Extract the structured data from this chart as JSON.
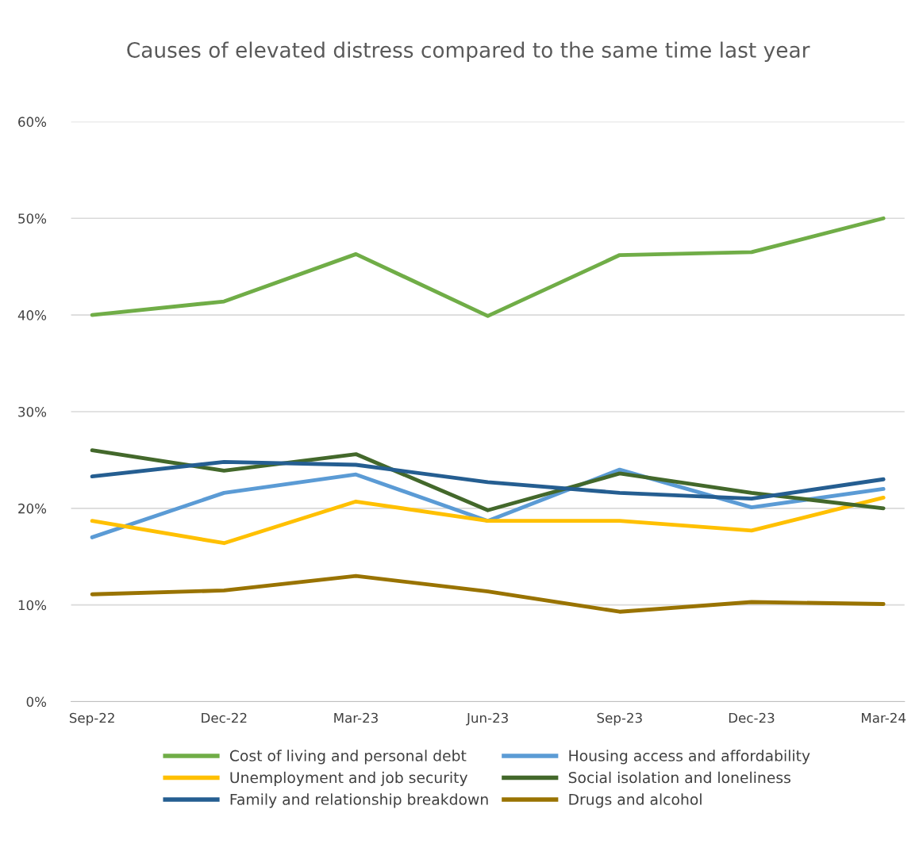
{
  "chart_data": {
    "type": "line",
    "title": "Causes of elevated distress compared to the same time last year",
    "categories": [
      "Sep-22",
      "Dec-22",
      "Mar-23",
      "Jun-23",
      "Sep-23",
      "Dec-23",
      "Mar-24"
    ],
    "series": [
      {
        "name": "Cost of living and personal debt",
        "color": "#70ad47",
        "values": [
          40.0,
          41.4,
          46.3,
          39.9,
          46.2,
          46.5,
          50.0
        ]
      },
      {
        "name": "Housing access and affordability",
        "color": "#5b9bd5",
        "values": [
          17.0,
          21.6,
          23.5,
          18.7,
          24.0,
          20.1,
          22.0
        ]
      },
      {
        "name": "Unemployment and job security",
        "color": "#ffc000",
        "values": [
          18.7,
          16.4,
          20.7,
          18.7,
          18.7,
          17.7,
          21.1
        ]
      },
      {
        "name": "Social isolation and loneliness",
        "color": "#43682b",
        "values": [
          26.0,
          23.9,
          25.6,
          19.8,
          23.6,
          21.6,
          20.0
        ]
      },
      {
        "name": "Family and relationship breakdown",
        "color": "#255e91",
        "values": [
          23.3,
          24.8,
          24.5,
          22.7,
          21.6,
          21.0,
          23.0
        ]
      },
      {
        "name": "Drugs and alcohol",
        "color": "#997300",
        "values": [
          11.1,
          11.5,
          13.0,
          11.4,
          9.3,
          10.3,
          10.1
        ]
      }
    ],
    "ylim": [
      0,
      60
    ],
    "yticks": [
      {
        "value": 0,
        "label": "0%"
      },
      {
        "value": 10,
        "label": "10%"
      },
      {
        "value": 20,
        "label": "20%"
      },
      {
        "value": 30,
        "label": "30%"
      },
      {
        "value": 40,
        "label": "40%"
      },
      {
        "value": 50,
        "label": "50%"
      },
      {
        "value": 60,
        "label": "60%"
      }
    ],
    "grid": "y",
    "legend": "bottom",
    "marker": "none",
    "line_style": "solid"
  }
}
